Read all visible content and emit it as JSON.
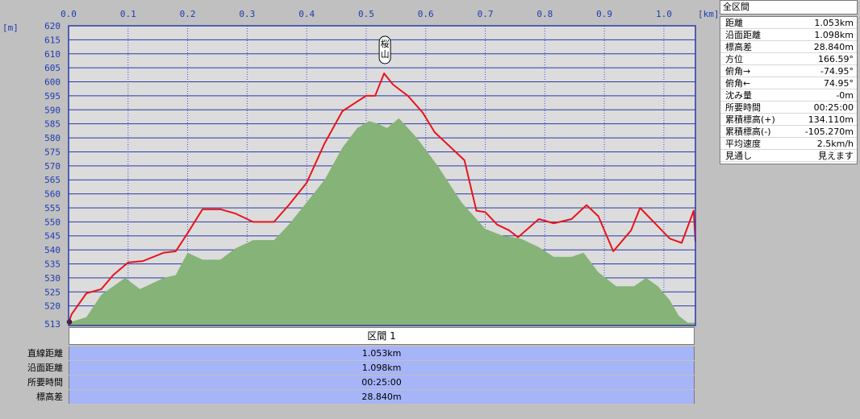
{
  "chart_data": {
    "type": "area",
    "x_unit": "[km]",
    "y_unit": "[m]",
    "xlim": [
      0,
      1.053
    ],
    "ylim": [
      513,
      620
    ],
    "x_ticks": [
      {
        "v": 0.0,
        "label": "0.0"
      },
      {
        "v": 0.1,
        "label": "0.1"
      },
      {
        "v": 0.2,
        "label": "0.2"
      },
      {
        "v": 0.3,
        "label": "0.3"
      },
      {
        "v": 0.4,
        "label": "0.4"
      },
      {
        "v": 0.5,
        "label": "0.5"
      },
      {
        "v": 0.6,
        "label": "0.6"
      },
      {
        "v": 0.7,
        "label": "0.7"
      },
      {
        "v": 0.8,
        "label": "0.8"
      },
      {
        "v": 0.9,
        "label": "0.9"
      },
      {
        "v": 1.0,
        "label": "1.0"
      }
    ],
    "y_ticks": [
      {
        "v": 513,
        "label": "513"
      },
      {
        "v": 520,
        "label": "520"
      },
      {
        "v": 525,
        "label": "525"
      },
      {
        "v": 530,
        "label": "530"
      },
      {
        "v": 535,
        "label": "535"
      },
      {
        "v": 540,
        "label": "540"
      },
      {
        "v": 545,
        "label": "545"
      },
      {
        "v": 550,
        "label": "550"
      },
      {
        "v": 555,
        "label": "555"
      },
      {
        "v": 560,
        "label": "560"
      },
      {
        "v": 565,
        "label": "565"
      },
      {
        "v": 570,
        "label": "570"
      },
      {
        "v": 575,
        "label": "575"
      },
      {
        "v": 580,
        "label": "580"
      },
      {
        "v": 585,
        "label": "585"
      },
      {
        "v": 590,
        "label": "590"
      },
      {
        "v": 595,
        "label": "595"
      },
      {
        "v": 600,
        "label": "600"
      },
      {
        "v": 605,
        "label": "605"
      },
      {
        "v": 610,
        "label": "610"
      },
      {
        "v": 615,
        "label": "615"
      },
      {
        "v": 620,
        "label": "620"
      }
    ],
    "series": [
      {
        "kind": "terrain-area",
        "color": "#85b378",
        "points": [
          [
            0,
            514
          ],
          [
            0.03,
            516
          ],
          [
            0.055,
            524
          ],
          [
            0.095,
            530
          ],
          [
            0.12,
            526
          ],
          [
            0.16,
            530
          ],
          [
            0.18,
            531
          ],
          [
            0.2,
            539
          ],
          [
            0.225,
            536.5
          ],
          [
            0.255,
            536.5
          ],
          [
            0.28,
            540.5
          ],
          [
            0.31,
            543.5
          ],
          [
            0.345,
            543.5
          ],
          [
            0.37,
            549
          ],
          [
            0.4,
            557
          ],
          [
            0.43,
            565
          ],
          [
            0.46,
            576.5
          ],
          [
            0.485,
            583.5
          ],
          [
            0.505,
            586
          ],
          [
            0.52,
            585
          ],
          [
            0.535,
            583.5
          ],
          [
            0.555,
            587
          ],
          [
            0.585,
            580
          ],
          [
            0.62,
            570
          ],
          [
            0.66,
            557
          ],
          [
            0.7,
            547.5
          ],
          [
            0.73,
            545
          ],
          [
            0.76,
            544
          ],
          [
            0.79,
            541
          ],
          [
            0.815,
            537.5
          ],
          [
            0.845,
            537.5
          ],
          [
            0.865,
            539
          ],
          [
            0.89,
            532
          ],
          [
            0.92,
            527
          ],
          [
            0.95,
            527
          ],
          [
            0.97,
            530
          ],
          [
            0.99,
            527
          ],
          [
            1.01,
            522
          ],
          [
            1.025,
            516.5
          ],
          [
            1.04,
            514
          ],
          [
            1.053,
            514
          ]
        ]
      },
      {
        "kind": "route-line",
        "color": "#e8141c",
        "points": [
          [
            0,
            514
          ],
          [
            0.005,
            517
          ],
          [
            0.03,
            524.5
          ],
          [
            0.055,
            526
          ],
          [
            0.075,
            531
          ],
          [
            0.1,
            535.5
          ],
          [
            0.125,
            536
          ],
          [
            0.16,
            539
          ],
          [
            0.18,
            539.5
          ],
          [
            0.2,
            546
          ],
          [
            0.225,
            554.5
          ],
          [
            0.255,
            554.5
          ],
          [
            0.28,
            553
          ],
          [
            0.31,
            550
          ],
          [
            0.345,
            550
          ],
          [
            0.37,
            556
          ],
          [
            0.4,
            564
          ],
          [
            0.43,
            578
          ],
          [
            0.46,
            589.5
          ],
          [
            0.485,
            593
          ],
          [
            0.5,
            595
          ],
          [
            0.515,
            595
          ],
          [
            0.53,
            603
          ],
          [
            0.545,
            599
          ],
          [
            0.57,
            595
          ],
          [
            0.595,
            589
          ],
          [
            0.615,
            582
          ],
          [
            0.665,
            572
          ],
          [
            0.685,
            554
          ],
          [
            0.7,
            553.5
          ],
          [
            0.72,
            549
          ],
          [
            0.74,
            547
          ],
          [
            0.755,
            544.5
          ],
          [
            0.79,
            551
          ],
          [
            0.815,
            549.5
          ],
          [
            0.845,
            551
          ],
          [
            0.87,
            556
          ],
          [
            0.89,
            552
          ],
          [
            0.915,
            539.5
          ],
          [
            0.945,
            547
          ],
          [
            0.96,
            555
          ],
          [
            0.985,
            549.5
          ],
          [
            1.01,
            544
          ],
          [
            1.03,
            542.5
          ],
          [
            1.05,
            554
          ],
          [
            1.053,
            543
          ]
        ]
      }
    ],
    "annotation": {
      "x": 0.53,
      "y": 603,
      "text": "桜山"
    },
    "start_marker": {
      "x": 0,
      "y": 514
    }
  },
  "section": {
    "title": "区間 1"
  },
  "summary": [
    {
      "label": "直線距離",
      "value": "1.053km"
    },
    {
      "label": "沿面距離",
      "value": "1.098km"
    },
    {
      "label": "所要時間",
      "value": "00:25:00"
    },
    {
      "label": "標高差",
      "value": "28.840m"
    }
  ],
  "info_panel": {
    "title": "全区間",
    "rows": [
      {
        "label": "距離",
        "value": "1.053km"
      },
      {
        "label": "沿面距離",
        "value": "1.098km"
      },
      {
        "label": "標高差",
        "value": "28.840m"
      },
      {
        "label": "方位",
        "value": "166.59°"
      },
      {
        "label": "俯角→",
        "value": "-74.95°"
      },
      {
        "label": "俯角←",
        "value": "74.95°"
      },
      {
        "label": "沈み量",
        "value": "-0m"
      },
      {
        "label": "所要時間",
        "value": "00:25:00"
      },
      {
        "label": "累積標高(+)",
        "value": "134.110m"
      },
      {
        "label": "累積標高(-)",
        "value": "-105.270m"
      },
      {
        "label": "平均速度",
        "value": "2.5km/h"
      },
      {
        "label": "見通し",
        "value": "見えます"
      }
    ]
  },
  "colors": {
    "plot_bg": "#dcdcdc",
    "grid_h": "#2a3aa8",
    "grid_v": "#3b50d0",
    "frame": "#2a38a8",
    "terrain": "#85b378",
    "route": "#e8141c",
    "summary_bg": "#a6b4f8"
  }
}
